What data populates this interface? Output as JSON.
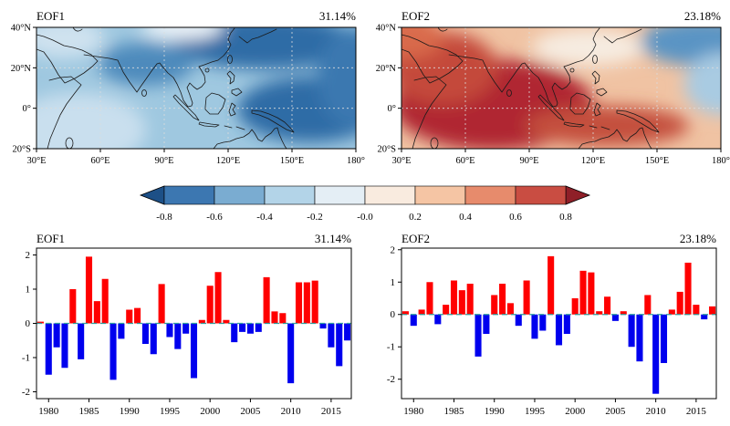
{
  "map_axis": {
    "lon_labels": [
      "30°E",
      "60°E",
      "90°E",
      "120°E",
      "150°E",
      "180°"
    ],
    "lat_labels": [
      "40°N",
      "20°N",
      "0°",
      "20°S"
    ]
  },
  "colorbar": {
    "tick_labels": [
      "-0.8",
      "-0.6",
      "-0.4",
      "-0.2",
      "-0.0",
      "0.2",
      "0.4",
      "0.6",
      "0.8"
    ],
    "segment_colors": [
      "#3c77b1",
      "#7aacd1",
      "#b3d4e8",
      "#e4eef5",
      "#f9ebdf",
      "#f5c5a4",
      "#e78b6c",
      "#c94d42"
    ],
    "left_arrow_color": "#1d5087",
    "right_arrow_color": "#8f1f28"
  },
  "style": {
    "bar_positive": "#ff0000",
    "bar_negative": "#0000ee",
    "zero_line_color": "#2f9e9e"
  },
  "chart_data": [
    {
      "type": "heatmap",
      "subtype": "contour_map",
      "title": "EOF1",
      "variance_label": "31.14%",
      "lon_ticks": [
        "30°E",
        "60°E",
        "90°E",
        "120°E",
        "150°E",
        "180°"
      ],
      "lat_ticks": [
        "40°N",
        "20°N",
        "0°",
        "20°S"
      ],
      "value_range": [
        -0.8,
        0.8
      ],
      "pattern": "Uniform negative (blue) loadings over the whole Indo-Pacific domain; darkest blue over the northwest Pacific (120°E-180°, 20°N-40°N) and the equatorial western-central Pacific; lighter blue over the southwest Indian Ocean."
    },
    {
      "type": "heatmap",
      "subtype": "contour_map",
      "title": "EOF2",
      "variance_label": "23.18%",
      "lon_ticks": [
        "30°E",
        "60°E",
        "90°E",
        "120°E",
        "150°E",
        "180°"
      ],
      "lat_ticks": [
        "40°N",
        "20°N",
        "0°",
        "20°S"
      ],
      "value_range": [
        -0.8,
        0.8
      ],
      "pattern": "Strong positive (dark red) loadings over the Indian Ocean and Maritime Continent, weakening eastward; negative (blue) loadings over the northwest/central North Pacific (140°E-180°, 15°N-40°N) with a white transition band between."
    },
    {
      "type": "bar",
      "title": "EOF1",
      "variance_label": "31.14%",
      "x": [
        1979,
        1980,
        1981,
        1982,
        1983,
        1984,
        1985,
        1986,
        1987,
        1988,
        1989,
        1990,
        1991,
        1992,
        1993,
        1994,
        1995,
        1996,
        1997,
        1998,
        1999,
        2000,
        2001,
        2002,
        2003,
        2004,
        2005,
        2006,
        2007,
        2008,
        2009,
        2010,
        2011,
        2012,
        2013,
        2014,
        2015,
        2016,
        2017
      ],
      "values": [
        0.05,
        -1.5,
        -0.7,
        -1.3,
        1.0,
        -1.05,
        1.95,
        0.65,
        1.3,
        -1.65,
        -0.45,
        0.4,
        0.45,
        -0.6,
        -0.9,
        1.15,
        -0.4,
        -0.75,
        -0.3,
        -1.6,
        0.1,
        1.1,
        1.5,
        0.1,
        -0.55,
        -0.25,
        -0.3,
        -0.25,
        1.35,
        0.35,
        0.3,
        -1.75,
        1.2,
        1.2,
        1.25,
        -0.15,
        -0.7,
        -1.25,
        -0.5
      ],
      "ylim": [
        -2.2,
        2.2
      ],
      "yticks": [
        -2,
        -1,
        0,
        1,
        2
      ],
      "xticks": [
        1980,
        1985,
        1990,
        1995,
        2000,
        2005,
        2010,
        2015
      ],
      "zero_line": "dashed teal at y=0"
    },
    {
      "type": "bar",
      "title": "EOF2",
      "variance_label": "23.18%",
      "x": [
        1979,
        1980,
        1981,
        1982,
        1983,
        1984,
        1985,
        1986,
        1987,
        1988,
        1989,
        1990,
        1991,
        1992,
        1993,
        1994,
        1995,
        1996,
        1997,
        1998,
        1999,
        2000,
        2001,
        2002,
        2003,
        2004,
        2005,
        2006,
        2007,
        2008,
        2009,
        2010,
        2011,
        2012,
        2013,
        2014,
        2015,
        2016,
        2017
      ],
      "values": [
        0.1,
        -0.35,
        0.15,
        1.0,
        -0.3,
        0.3,
        1.05,
        0.75,
        0.95,
        -1.3,
        -0.6,
        0.6,
        0.95,
        0.35,
        -0.35,
        1.05,
        -0.75,
        -0.5,
        1.8,
        -0.95,
        -0.6,
        0.5,
        1.35,
        1.3,
        0.1,
        0.55,
        -0.2,
        0.1,
        -1.0,
        -1.45,
        0.6,
        -2.45,
        -1.5,
        0.15,
        0.7,
        1.6,
        0.3,
        -0.15,
        0.25
      ],
      "ylim": [
        -2.6,
        2.05
      ],
      "yticks": [
        -2,
        -1,
        0,
        1,
        2
      ],
      "xticks": [
        1980,
        1985,
        1990,
        1995,
        2000,
        2005,
        2010,
        2015
      ],
      "zero_line": "dashed teal at y=0"
    }
  ]
}
